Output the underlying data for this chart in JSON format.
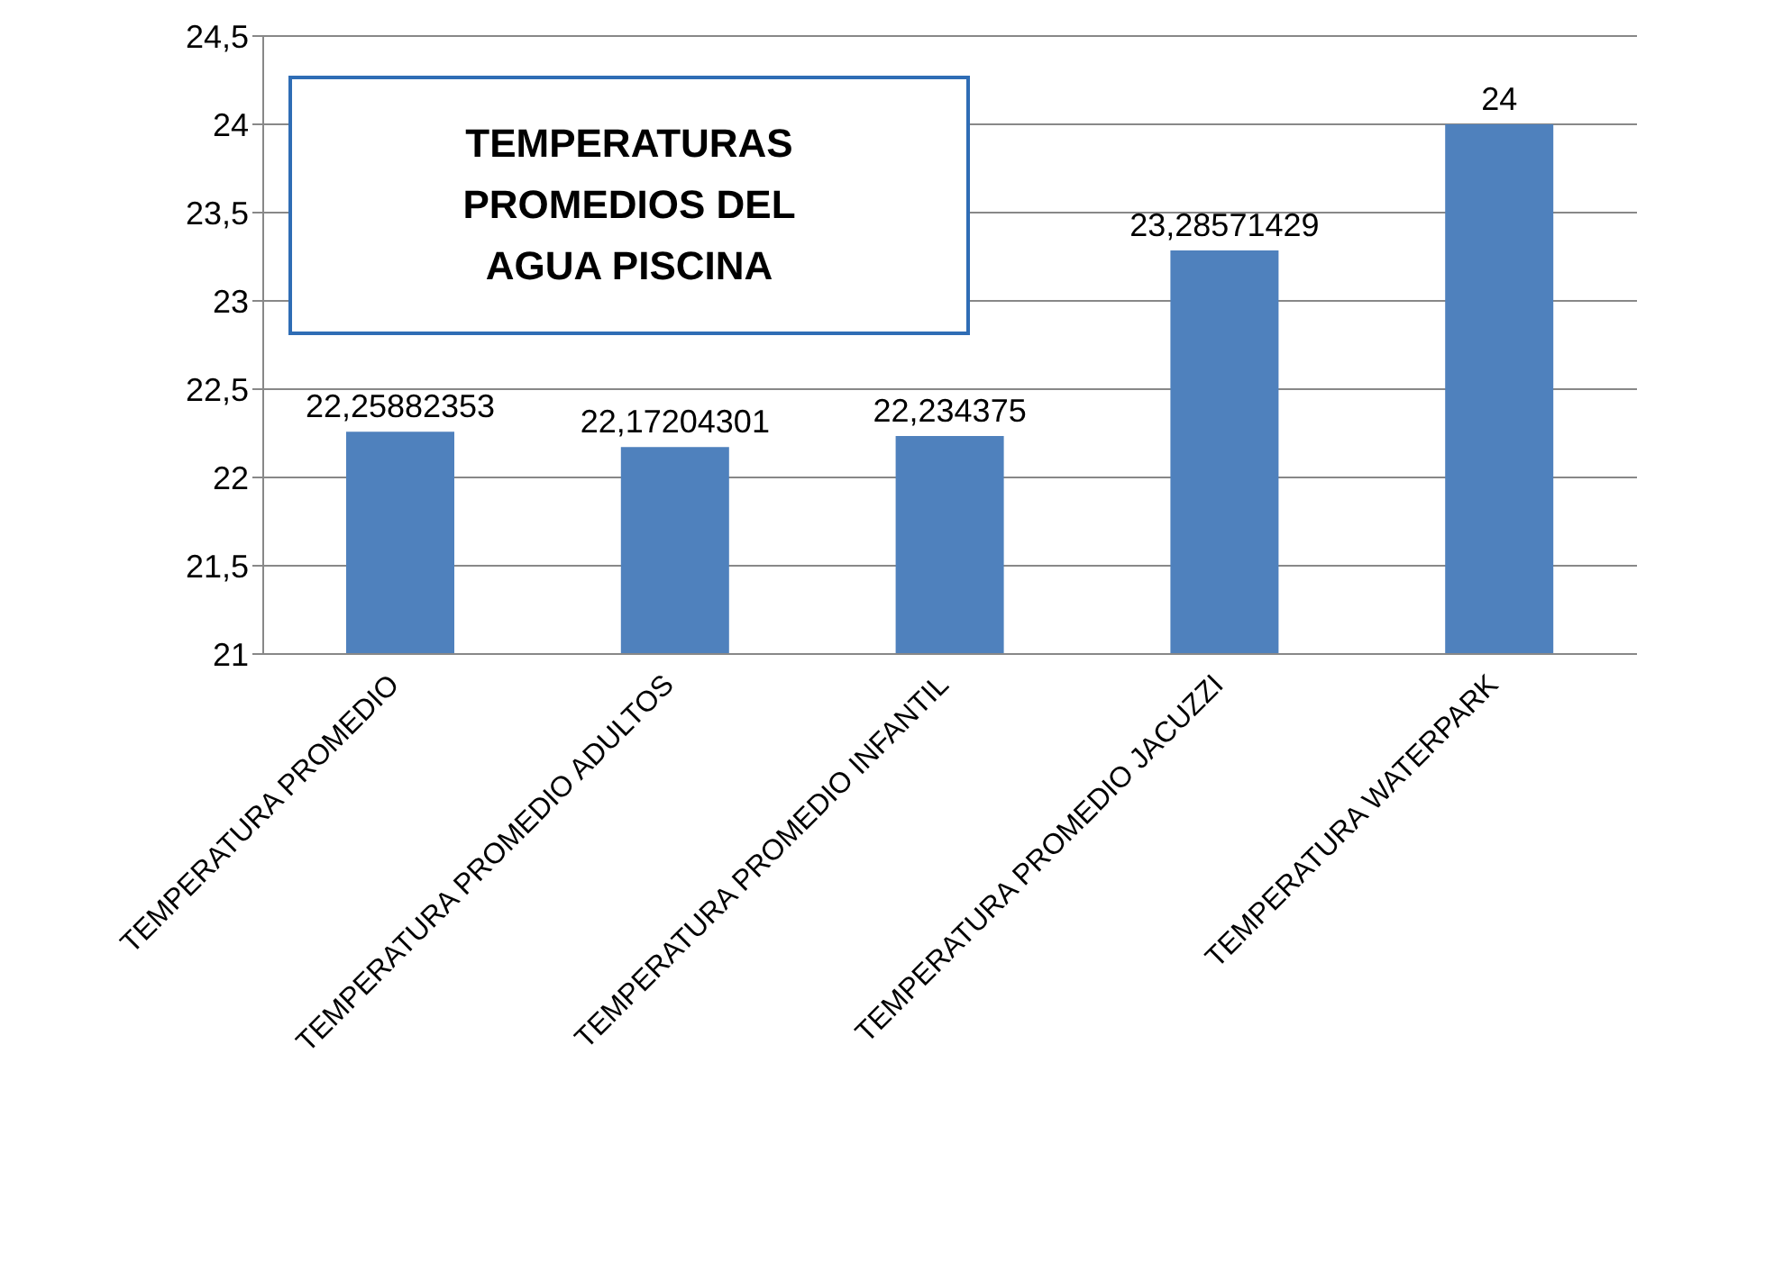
{
  "chart_data": {
    "type": "bar",
    "title": "TEMPERATURAS PROMEDIOS DEL AGUA PISCINA",
    "categories": [
      "TEMPERATURA PROMEDIO",
      "TEMPERATURA PROMEDIO ADULTOS",
      "TEMPERATURA PROMEDIO INFANTIL",
      "TEMPERATURA PROMEDIO JACUZZI",
      "TEMPERATURA WATERPARK"
    ],
    "values": [
      22.25882353,
      22.17204301,
      22.234375,
      23.28571429,
      24
    ],
    "value_labels": [
      "22,25882353",
      "22,17204301",
      "22,234375",
      "23,28571429",
      "24"
    ],
    "color": "#4f81bd",
    "ylim": [
      21,
      24.5
    ],
    "yticks": [
      21,
      {
        "value": 21.5,
        "label": "21,5"
      },
      22,
      {
        "value": 22.5,
        "label": "22,5"
      },
      23,
      {
        "value": 23.5,
        "label": "23,5"
      },
      24,
      {
        "value": 24.5,
        "label": "24,5"
      }
    ],
    "grid": "y",
    "legend": false
  }
}
